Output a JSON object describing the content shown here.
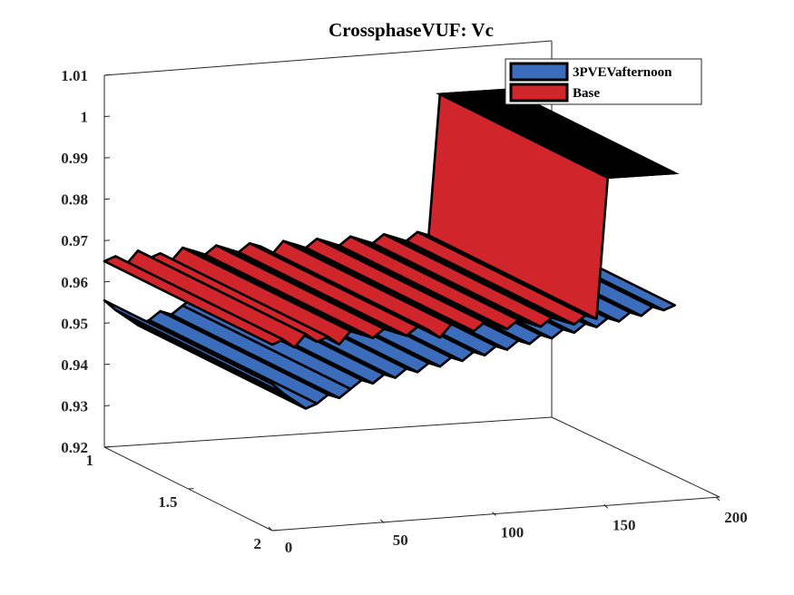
{
  "chart_data": {
    "type": "area",
    "title": "CrossphaseVUF: Vc",
    "xlabel": "",
    "ylabel": "",
    "zlabel": "",
    "x_ticks": [
      "0",
      "50",
      "100",
      "150",
      "200"
    ],
    "y_ticks": [
      "1",
      "1.5",
      "2"
    ],
    "z_ticks": [
      "0.92",
      "0.93",
      "0.94",
      "0.95",
      "0.96",
      "0.97",
      "0.98",
      "0.99",
      "1",
      "1.01"
    ],
    "xlim": [
      0,
      200
    ],
    "ylim": [
      1,
      2
    ],
    "zlim": [
      0.92,
      1.01
    ],
    "grid": false,
    "legend_position": "top-right",
    "colors": {
      "3PVEVafternoon": "#3c6cbc",
      "Base": "#d0262b",
      "edge": "#000000"
    },
    "series": [
      {
        "name": "3PVEVafternoon",
        "x": [
          0,
          5,
          10,
          15,
          20,
          25,
          30,
          35,
          40,
          45,
          50,
          55,
          60,
          65,
          70,
          75,
          80,
          85,
          90,
          95,
          100,
          105,
          110,
          115,
          120,
          125,
          130,
          135,
          140,
          145,
          150,
          155,
          160,
          165,
          170,
          175,
          180
        ],
        "values": [
          0.9555,
          0.953,
          0.951,
          0.949,
          0.95,
          0.952,
          0.951,
          0.953,
          0.955,
          0.954,
          0.956,
          0.955,
          0.957,
          0.956,
          0.958,
          0.957,
          0.959,
          0.958,
          0.96,
          0.959,
          0.961,
          0.96,
          0.962,
          0.961,
          0.963,
          0.962,
          0.964,
          0.963,
          0.965,
          0.964,
          0.966,
          0.965,
          0.967,
          0.966,
          0.968,
          0.967,
          0.968
        ]
      },
      {
        "name": "Base",
        "x": [
          0,
          5,
          10,
          15,
          20,
          25,
          30,
          35,
          40,
          45,
          50,
          55,
          60,
          65,
          70,
          75,
          80,
          85,
          90,
          95,
          100,
          105,
          110,
          115,
          120,
          125,
          130,
          135,
          140,
          145,
          150,
          155,
          160,
          165,
          170,
          175,
          180
        ],
        "values": [
          0.965,
          0.966,
          0.964,
          0.967,
          0.965,
          0.966,
          0.964,
          0.967,
          0.966,
          0.965,
          0.967,
          0.966,
          0.965,
          0.967,
          0.966,
          0.964,
          0.967,
          0.966,
          0.965,
          0.967,
          0.966,
          0.965,
          0.967,
          0.966,
          0.965,
          0.967,
          0.966,
          0.965,
          0.967,
          0.966,
          1.0,
          1.0,
          1.0,
          1.0,
          1.0,
          1.0,
          1.0
        ]
      }
    ]
  }
}
